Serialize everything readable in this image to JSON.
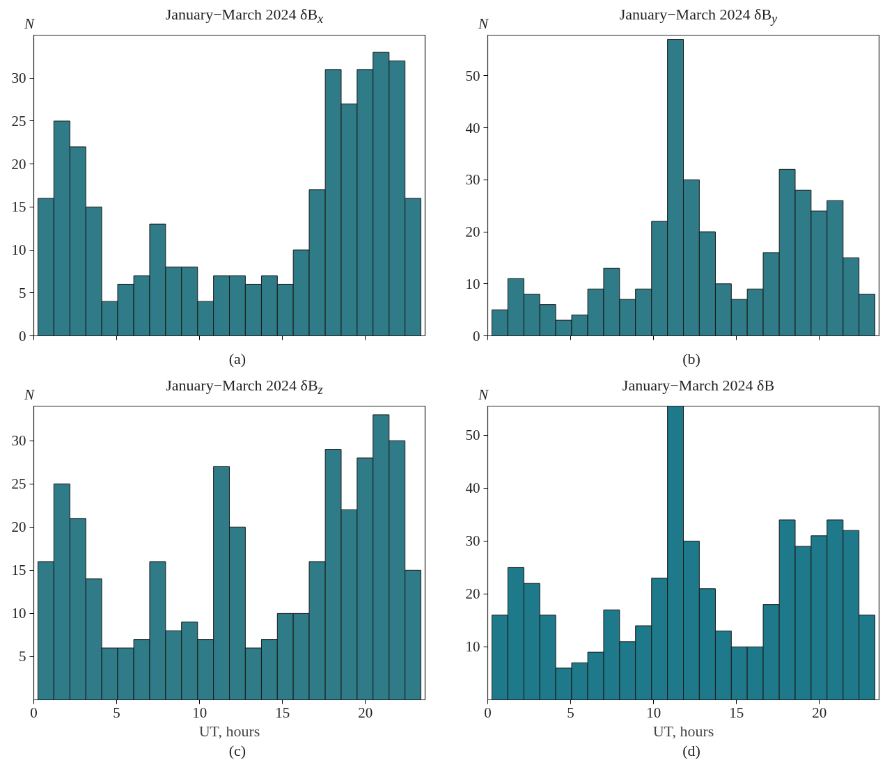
{
  "chart_data": [
    {
      "type": "histogram",
      "title": "January−March 2024 δB$_{x}$",
      "ylabel": "N",
      "annotations": [
        "(a)"
      ],
      "color": "#2f7b87",
      "tick_labels": "y",
      "bins": [
        0.25,
        1.21,
        2.18,
        3.14,
        4.1,
        5.06,
        6.03,
        6.99,
        7.95,
        8.91,
        9.88,
        10.84,
        11.8,
        12.76,
        13.73,
        14.69,
        15.65,
        16.61,
        17.58,
        18.54,
        19.5,
        20.46,
        21.43,
        22.39,
        23.35
      ],
      "values": [
        16,
        25,
        22,
        15,
        4,
        6,
        7,
        13,
        8,
        8,
        4,
        7,
        7,
        6,
        7,
        6,
        10,
        17,
        31,
        27,
        31,
        33,
        32,
        16
      ],
      "xlim": [
        0,
        23.6
      ],
      "xticks": [
        0,
        5,
        10,
        15,
        20
      ],
      "ylim": [
        0,
        35
      ],
      "yticks": [
        0,
        5,
        10,
        15,
        20,
        25,
        30
      ]
    },
    {
      "type": "histogram",
      "title": "January−March 2024 δB$_{y}$",
      "ylabel": "N",
      "annotations": [
        "(b)"
      ],
      "color": "#2f7b87",
      "tick_labels": "y",
      "bins": [
        0.25,
        1.21,
        2.18,
        3.14,
        4.1,
        5.06,
        6.03,
        6.99,
        7.95,
        8.91,
        9.88,
        10.84,
        11.8,
        12.76,
        13.73,
        14.69,
        15.65,
        16.61,
        17.58,
        18.54,
        19.5,
        20.46,
        21.43,
        22.39,
        23.35
      ],
      "values": [
        5,
        11,
        8,
        6,
        3,
        4,
        9,
        13,
        7,
        9,
        22,
        57,
        30,
        20,
        10,
        7,
        9,
        16,
        32,
        28,
        24,
        26,
        15,
        8
      ],
      "xlim": [
        0,
        23.6
      ],
      "xticks": [
        0,
        5,
        10,
        15,
        20
      ],
      "ylim": [
        0,
        57.8
      ],
      "yticks": [
        0,
        10,
        20,
        30,
        40,
        50
      ]
    },
    {
      "type": "histogram",
      "title": "January−March 2024 δB$_{z}$",
      "ylabel": "N",
      "xlabel": "UT, hours",
      "annotations": [
        "(c)"
      ],
      "color": "#2f7b87",
      "bins": [
        0.25,
        1.21,
        2.18,
        3.14,
        4.1,
        5.06,
        6.03,
        6.99,
        7.95,
        8.91,
        9.88,
        10.84,
        11.8,
        12.76,
        13.73,
        14.69,
        15.65,
        16.61,
        17.58,
        18.54,
        19.5,
        20.46,
        21.43,
        22.39,
        23.35
      ],
      "values": [
        16,
        25,
        21,
        14,
        6,
        6,
        7,
        16,
        8,
        9,
        7,
        27,
        20,
        6,
        7,
        10,
        10,
        16,
        29,
        22,
        28,
        33,
        30,
        15
      ],
      "xlim": [
        0,
        23.6
      ],
      "xticks": [
        0,
        5,
        10,
        15,
        20
      ],
      "ylim": [
        0,
        34
      ],
      "yticks": [
        5,
        10,
        15,
        20,
        25,
        30
      ]
    },
    {
      "type": "histogram",
      "title": "January−March 2024 δB",
      "ylabel": "N",
      "xlabel": "UT, hours",
      "annotations": [
        "(d)"
      ],
      "color": "#1e7a8a",
      "bins": [
        0.25,
        1.21,
        2.18,
        3.14,
        4.1,
        5.06,
        6.03,
        6.99,
        7.95,
        8.91,
        9.88,
        10.84,
        11.8,
        12.76,
        13.73,
        14.69,
        15.65,
        16.61,
        17.58,
        18.54,
        19.5,
        20.46,
        21.43,
        22.39,
        23.35
      ],
      "values": [
        16,
        25,
        22,
        16,
        6,
        7,
        9,
        17,
        11,
        14,
        23,
        55.5,
        30,
        21,
        13,
        10,
        10,
        18,
        34,
        29,
        31,
        34,
        32,
        16
      ],
      "xlim": [
        0,
        23.6
      ],
      "xticks": [
        0,
        5,
        10,
        15,
        20
      ],
      "ylim": [
        0,
        55.5
      ],
      "yticks": [
        10,
        20,
        30,
        40,
        50
      ]
    }
  ]
}
